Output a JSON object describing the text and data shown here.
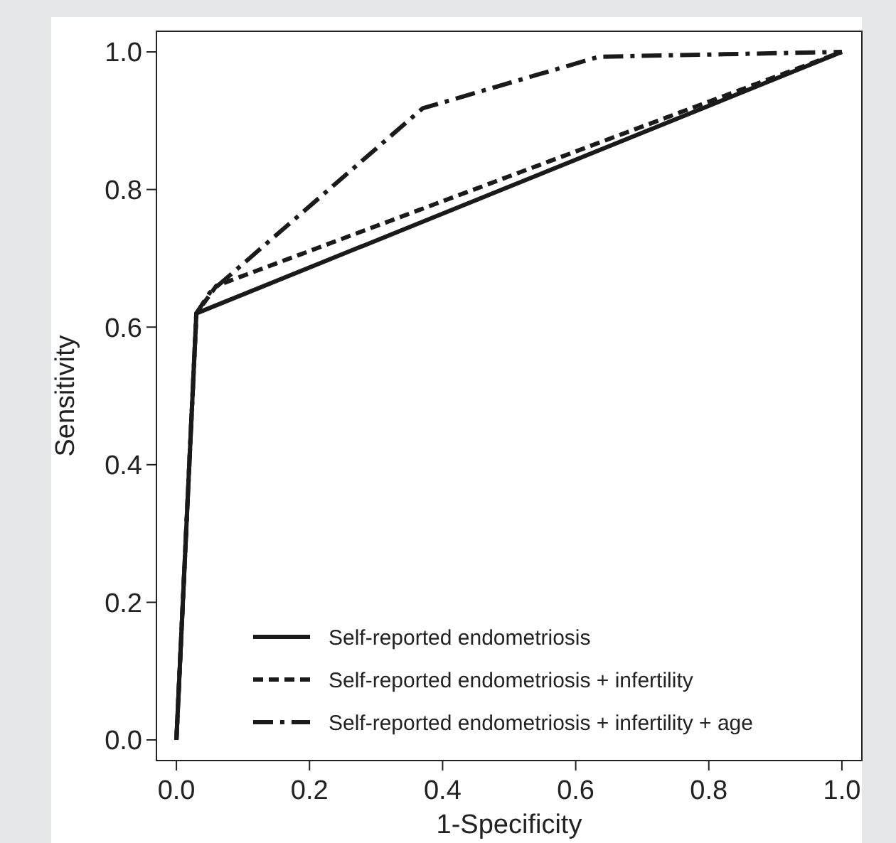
{
  "chart_data": {
    "type": "line",
    "xlabel": "1-Specificity",
    "ylabel": "Sensitivity",
    "xlim": [
      -0.03,
      1.03
    ],
    "ylim": [
      -0.03,
      1.03
    ],
    "xticks": [
      {
        "value": 0,
        "label": "0.0"
      },
      {
        "value": 0.2,
        "label": "0.2"
      },
      {
        "value": 0.4,
        "label": "0.4"
      },
      {
        "value": 0.6,
        "label": "0.6"
      },
      {
        "value": 0.8,
        "label": "0.8"
      },
      {
        "value": 1,
        "label": "1.0"
      }
    ],
    "yticks": [
      {
        "value": 0,
        "label": "0.0"
      },
      {
        "value": 0.2,
        "label": "0.2"
      },
      {
        "value": 0.4,
        "label": "0.4"
      },
      {
        "value": 0.6,
        "label": "0.6"
      },
      {
        "value": 0.8,
        "label": "0.8"
      },
      {
        "value": 1,
        "label": "1.0"
      }
    ],
    "grid": false,
    "legend": "bottom right",
    "marker": "none",
    "series": [
      {
        "name": "Self-reported endometriosis",
        "color": "#1a1a1a",
        "line_style": "solid",
        "x": [
          0,
          0.03,
          1
        ],
        "values": [
          0,
          0.62,
          1
        ]
      },
      {
        "name": "Self-reported endometriosis + infertility",
        "color": "#1a1a1a",
        "line_style": "dashed",
        "x": [
          0,
          0.03,
          0.06,
          1
        ],
        "values": [
          0,
          0.62,
          0.66,
          1
        ]
      },
      {
        "name": "Self-reported endometriosis + infertility + age",
        "color": "#1a1a1a",
        "line_style": "dashdot",
        "x": [
          0,
          0.03,
          0.05,
          0.37,
          0.635,
          1
        ],
        "values": [
          0,
          0.62,
          0.65,
          0.918,
          0.993,
          1
        ]
      }
    ]
  }
}
